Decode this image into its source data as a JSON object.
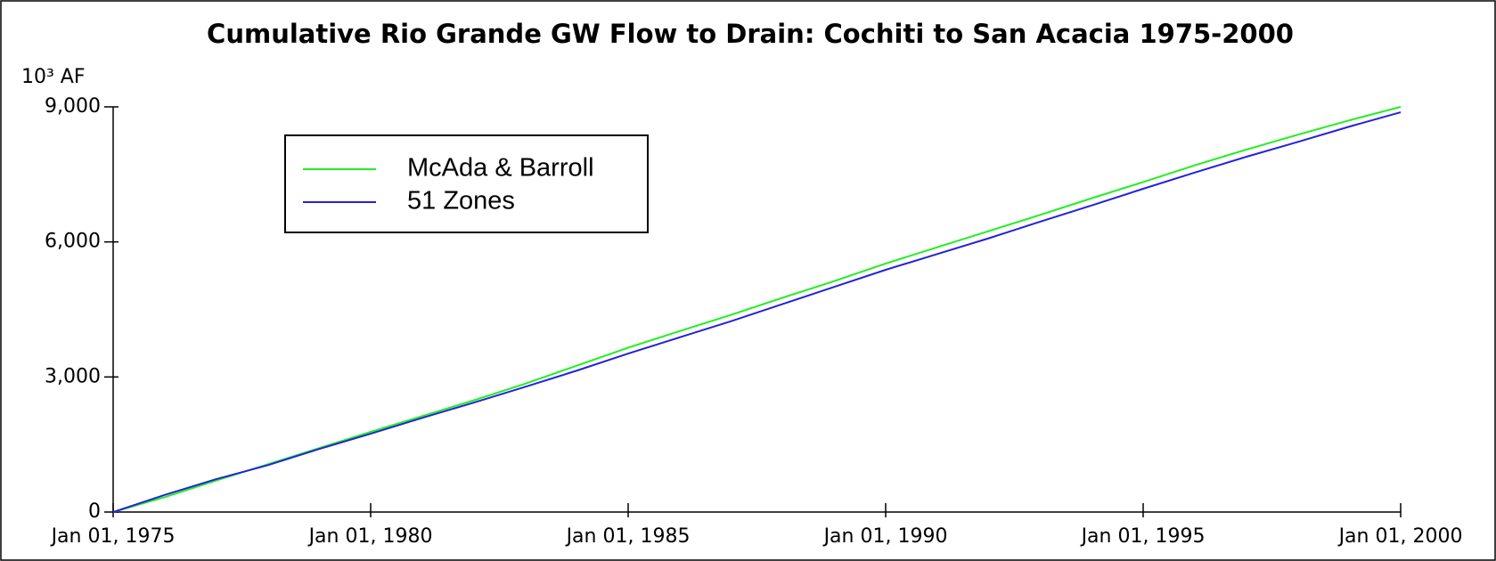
{
  "chart_data": {
    "type": "line",
    "title": "Cumulative Rio Grande GW Flow to Drain: Cochiti to San Acacia 1975-2000",
    "y_label": "10³ AF",
    "x": [
      1975,
      1976,
      1977,
      1978,
      1979,
      1980,
      1981,
      1982,
      1983,
      1984,
      1985,
      1986,
      1987,
      1988,
      1989,
      1990,
      1991,
      1992,
      1993,
      1994,
      1995,
      1996,
      1997,
      1998,
      1999,
      2000
    ],
    "series": [
      {
        "name": "McAda & Barroll",
        "color": "#22ee22",
        "values": [
          0,
          330,
          700,
          1060,
          1420,
          1780,
          2130,
          2480,
          2850,
          3250,
          3650,
          4020,
          4380,
          4760,
          5130,
          5520,
          5880,
          6240,
          6600,
          6970,
          7330,
          7700,
          8050,
          8380,
          8700,
          9000
        ]
      },
      {
        "name": "51 Zones",
        "color": "#2222dd",
        "values": [
          0,
          380,
          730,
          1040,
          1400,
          1740,
          2090,
          2430,
          2780,
          3140,
          3520,
          3880,
          4240,
          4620,
          5000,
          5380,
          5730,
          6080,
          6450,
          6810,
          7180,
          7540,
          7890,
          8220,
          8560,
          8880
        ]
      }
    ],
    "xlim": [
      1975,
      2000
    ],
    "xticks": [
      {
        "value": 1975,
        "label": "Jan 01, 1975"
      },
      {
        "value": 1980,
        "label": "Jan 01, 1980"
      },
      {
        "value": 1985,
        "label": "Jan 01, 1985"
      },
      {
        "value": 1990,
        "label": "Jan 01, 1990"
      },
      {
        "value": 1995,
        "label": "Jan 01, 1995"
      },
      {
        "value": 2000,
        "label": "Jan 01, 2000"
      }
    ],
    "ylim": [
      0,
      9000
    ],
    "yticks": [
      0,
      {
        "value": 3000,
        "label": "3,000"
      },
      {
        "value": 6000,
        "label": "6,000"
      },
      {
        "value": 9000,
        "label": "9,000"
      }
    ],
    "legend": "upper-left"
  }
}
